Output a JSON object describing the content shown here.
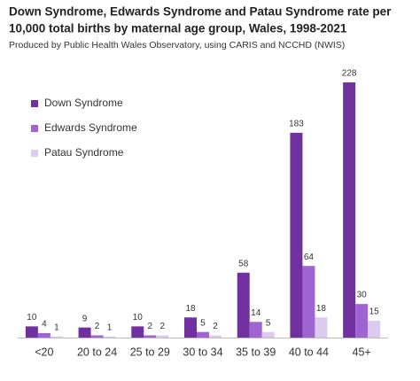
{
  "chart_data": {
    "type": "bar",
    "title": [
      "Down Syndrome, Edwards Syndrome and Patau Syndrome rate per",
      "10,000 total births by maternal age group, Wales, 1998-2021"
    ],
    "subtitle": "Produced by Public Health Wales Observatory, using CARIS and NCCHD (NWIS)",
    "categories": [
      "<20",
      "20 to 24",
      "25 to 29",
      "30 to 34",
      "35 to 39",
      "40 to 44",
      "45+"
    ],
    "series": [
      {
        "name": "Down Syndrome",
        "color": "#7030a0",
        "values": [
          10,
          9,
          10,
          18,
          58,
          183,
          228
        ]
      },
      {
        "name": "Edwards Syndrome",
        "color": "#a064d2",
        "values": [
          4,
          2,
          2,
          5,
          14,
          64,
          30
        ]
      },
      {
        "name": "Patau Syndrome",
        "color": "#dccbee",
        "values": [
          1,
          1,
          2,
          2,
          5,
          18,
          15
        ]
      }
    ],
    "legend": "upper left",
    "grid": false
  }
}
